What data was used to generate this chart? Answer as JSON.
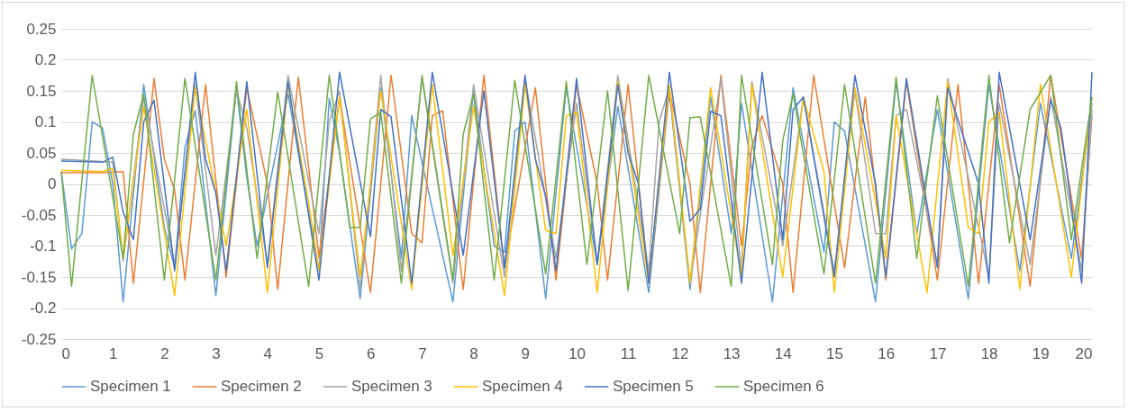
{
  "chart_data": {
    "type": "line",
    "xlim": [
      0,
      20
    ],
    "xticks": [
      0,
      1,
      2,
      3,
      4,
      5,
      6,
      7,
      8,
      9,
      10,
      11,
      12,
      13,
      14,
      15,
      16,
      17,
      18,
      19,
      20
    ],
    "ylim": [
      -0.25,
      0.25
    ],
    "yticks": [
      -0.25,
      -0.2,
      -0.15,
      -0.1,
      -0.05,
      0,
      0.05,
      0.1,
      0.15,
      0.2,
      0.25
    ],
    "grid": "y",
    "legend": "bottom",
    "marker": "none",
    "line_style": "solid",
    "series": [
      {
        "name": "Specimen 1",
        "color": "#5b9bd5",
        "x": [
          0,
          0.2,
          0.4,
          0.6,
          0.8,
          1.0,
          1.2,
          1.6,
          2.0,
          2.2,
          2.4,
          2.6,
          3.0,
          3.4,
          3.6,
          3.8,
          4.4,
          5.0,
          5.2,
          5.4,
          5.8,
          6.2,
          6.6,
          6.8,
          7.6,
          8.0,
          8.4,
          8.6,
          8.8,
          9.0,
          9.4,
          9.8,
          10.4,
          10.8,
          11.4,
          11.8,
          12.2,
          12.6,
          13.0,
          13.2,
          13.8,
          14.2,
          14.8,
          15.0,
          15.2,
          15.8,
          16.2,
          16.6,
          17.0,
          17.6,
          18.0,
          18.6,
          19.0,
          19.6,
          20.0
        ],
        "values": [
          0.02,
          -0.105,
          -0.08,
          0.1,
          0.09,
          0.0,
          -0.19,
          0.16,
          -0.07,
          -0.135,
          0.06,
          0.118,
          -0.18,
          0.155,
          0.01,
          -0.1,
          0.145,
          -0.14,
          0.138,
          0.05,
          -0.185,
          0.155,
          -0.12,
          0.11,
          -0.19,
          0.15,
          -0.1,
          -0.11,
          0.085,
          0.1,
          -0.185,
          0.155,
          -0.13,
          0.125,
          -0.175,
          0.15,
          -0.17,
          0.14,
          -0.08,
          0.13,
          -0.19,
          0.155,
          -0.11,
          0.1,
          0.085,
          -0.19,
          0.165,
          -0.08,
          0.12,
          -0.185,
          0.16,
          -0.14,
          0.13,
          -0.12,
          0.13
        ]
      },
      {
        "name": "Specimen 2",
        "color": "#ed7d31",
        "x": [
          0,
          0.8,
          1.2,
          1.4,
          1.8,
          2.0,
          2.2,
          2.4,
          2.8,
          3.2,
          3.6,
          4.0,
          4.2,
          4.6,
          5.0,
          5.4,
          6.0,
          6.4,
          6.8,
          7.0,
          7.2,
          7.4,
          7.8,
          8.2,
          8.6,
          9.2,
          9.6,
          10.0,
          10.4,
          10.6,
          11.0,
          11.4,
          11.8,
          12.2,
          12.4,
          12.8,
          13.2,
          13.4,
          13.6,
          14.0,
          14.2,
          14.6,
          15.2,
          15.6,
          16.0,
          16.4,
          17.0,
          17.4,
          17.8,
          18.2,
          18.8,
          19.2,
          19.8,
          20.0
        ],
        "values": [
          0.018,
          0.018,
          0.02,
          -0.16,
          0.17,
          0.04,
          -0.01,
          -0.155,
          0.16,
          -0.15,
          0.155,
          0.0,
          -0.17,
          0.172,
          -0.118,
          0.14,
          -0.175,
          0.175,
          -0.08,
          -0.095,
          0.11,
          0.118,
          -0.17,
          0.175,
          -0.135,
          0.155,
          -0.155,
          0.16,
          0.0,
          -0.155,
          0.16,
          -0.155,
          0.15,
          0.0,
          -0.175,
          0.175,
          -0.1,
          0.06,
          0.11,
          0.0,
          -0.175,
          0.175,
          -0.135,
          0.14,
          -0.155,
          0.165,
          -0.155,
          0.16,
          -0.16,
          0.16,
          -0.165,
          0.175,
          -0.12,
          0.11
        ]
      },
      {
        "name": "Specimen 3",
        "color": "#a5a5a5",
        "x": [
          0,
          1.0,
          1.2,
          1.6,
          2.2,
          2.6,
          3.0,
          3.4,
          3.6,
          4.0,
          4.4,
          5.0,
          5.2,
          5.4,
          5.8,
          6.2,
          6.6,
          7.0,
          7.6,
          8.0,
          8.6,
          9.0,
          9.6,
          10.0,
          10.4,
          10.8,
          11.4,
          11.6,
          11.8,
          12.2,
          12.8,
          13.2,
          13.4,
          14.0,
          14.4,
          15.0,
          15.4,
          15.8,
          16.0,
          16.2,
          16.4,
          17.0,
          17.2,
          18.0,
          18.2,
          18.8,
          19.2,
          19.8,
          20.0
        ],
        "values": [
          0.04,
          0.035,
          -0.125,
          0.14,
          -0.13,
          0.16,
          -0.115,
          0.15,
          0.09,
          -0.13,
          0.175,
          -0.08,
          0.1,
          0.15,
          -0.17,
          0.175,
          -0.14,
          0.17,
          -0.16,
          0.16,
          -0.15,
          0.17,
          -0.12,
          0.13,
          -0.13,
          0.175,
          -0.14,
          0.1,
          0.155,
          -0.16,
          0.17,
          -0.14,
          0.165,
          -0.1,
          0.14,
          -0.14,
          0.15,
          -0.08,
          -0.08,
          0.11,
          0.12,
          -0.13,
          0.17,
          -0.15,
          0.13,
          -0.13,
          0.14,
          -0.14,
          0.12
        ]
      },
      {
        "name": "Specimen 4",
        "color": "#ffc000",
        "x": [
          0,
          0.8,
          1.0,
          1.2,
          1.6,
          2.2,
          2.6,
          3.2,
          3.6,
          4.0,
          4.4,
          4.8,
          5.0,
          5.4,
          5.8,
          6.2,
          6.8,
          7.2,
          7.6,
          8.0,
          8.6,
          9.0,
          9.4,
          9.6,
          9.8,
          10.0,
          10.4,
          10.8,
          11.4,
          11.8,
          12.2,
          12.6,
          13.2,
          13.4,
          14.0,
          14.4,
          14.8,
          15.0,
          15.4,
          16.0,
          16.2,
          16.8,
          17.2,
          17.6,
          17.8,
          18.0,
          18.2,
          18.6,
          19.0,
          19.6,
          20.0
        ],
        "values": [
          0.022,
          0.02,
          0.025,
          -0.12,
          0.125,
          -0.18,
          0.155,
          -0.1,
          0.12,
          -0.175,
          0.16,
          -0.03,
          -0.14,
          0.14,
          -0.15,
          0.15,
          -0.17,
          0.16,
          -0.115,
          0.125,
          -0.18,
          0.16,
          -0.075,
          -0.08,
          0.11,
          0.115,
          -0.175,
          0.165,
          -0.16,
          0.16,
          -0.16,
          0.155,
          -0.15,
          0.16,
          -0.15,
          0.14,
          0.02,
          -0.175,
          0.155,
          -0.12,
          0.11,
          -0.175,
          0.165,
          -0.07,
          -0.08,
          0.1,
          0.115,
          -0.17,
          0.16,
          -0.15,
          0.14
        ]
      },
      {
        "name": "Specimen 5",
        "color": "#4472c4",
        "x": [
          0,
          0.8,
          1.0,
          1.2,
          1.4,
          1.6,
          1.8,
          2.2,
          2.6,
          2.8,
          3.0,
          3.2,
          3.6,
          4.0,
          4.4,
          4.6,
          5.0,
          5.4,
          6.0,
          6.2,
          6.4,
          6.8,
          7.2,
          7.8,
          8.2,
          8.6,
          9.0,
          9.2,
          9.4,
          9.6,
          10.0,
          10.4,
          10.8,
          11.0,
          11.2,
          11.4,
          11.8,
          12.2,
          12.4,
          12.6,
          12.8,
          13.2,
          13.6,
          14.0,
          14.2,
          14.4,
          15.0,
          15.4,
          15.8,
          16.0,
          16.4,
          17.0,
          17.2,
          17.8,
          18.0,
          18.2,
          18.8,
          19.2,
          19.4,
          19.8,
          20.0
        ],
        "values": [
          0.037,
          0.035,
          0.043,
          -0.045,
          -0.09,
          0.1,
          0.135,
          -0.14,
          0.18,
          0.04,
          -0.015,
          -0.14,
          0.165,
          -0.135,
          0.165,
          0.055,
          -0.155,
          0.18,
          -0.085,
          0.12,
          0.108,
          -0.16,
          0.18,
          -0.115,
          0.15,
          -0.135,
          0.175,
          0.04,
          -0.02,
          -0.14,
          0.17,
          -0.13,
          0.16,
          0.05,
          0.0,
          -0.16,
          0.18,
          -0.06,
          -0.04,
          0.117,
          0.11,
          -0.16,
          0.18,
          -0.09,
          0.12,
          0.14,
          -0.15,
          0.175,
          0.0,
          -0.15,
          0.17,
          -0.135,
          0.155,
          0.0,
          -0.16,
          0.18,
          -0.09,
          0.135,
          0.09,
          -0.16,
          0.18
        ]
      },
      {
        "name": "Specimen 6",
        "color": "#70ad47",
        "x": [
          0,
          0.2,
          0.6,
          1.2,
          1.4,
          1.6,
          2.0,
          2.4,
          3.0,
          3.4,
          3.8,
          4.2,
          4.8,
          5.2,
          5.6,
          5.8,
          6.0,
          6.2,
          6.6,
          7.0,
          7.6,
          7.8,
          8.0,
          8.4,
          8.8,
          9.4,
          9.8,
          10.2,
          10.6,
          11.0,
          11.4,
          12.0,
          12.2,
          12.4,
          13.0,
          13.2,
          13.8,
          14.0,
          14.2,
          14.8,
          15.2,
          15.8,
          16.2,
          16.6,
          17.0,
          17.6,
          18.0,
          18.4,
          18.8,
          19.2,
          19.6,
          20.0
        ],
        "values": [
          0.02,
          -0.165,
          0.175,
          -0.12,
          0.08,
          0.145,
          -0.155,
          0.17,
          -0.155,
          0.165,
          -0.12,
          0.148,
          -0.165,
          0.175,
          -0.07,
          -0.07,
          0.105,
          0.115,
          -0.16,
          0.175,
          -0.155,
          0.08,
          0.145,
          -0.155,
          0.167,
          -0.145,
          0.165,
          -0.13,
          0.15,
          -0.172,
          0.175,
          -0.08,
          0.107,
          0.108,
          -0.165,
          0.175,
          -0.13,
          0.07,
          0.145,
          -0.145,
          0.16,
          -0.16,
          0.172,
          -0.12,
          0.142,
          -0.165,
          0.175,
          -0.095,
          0.12,
          0.175,
          -0.09,
          0.14
        ]
      }
    ]
  }
}
